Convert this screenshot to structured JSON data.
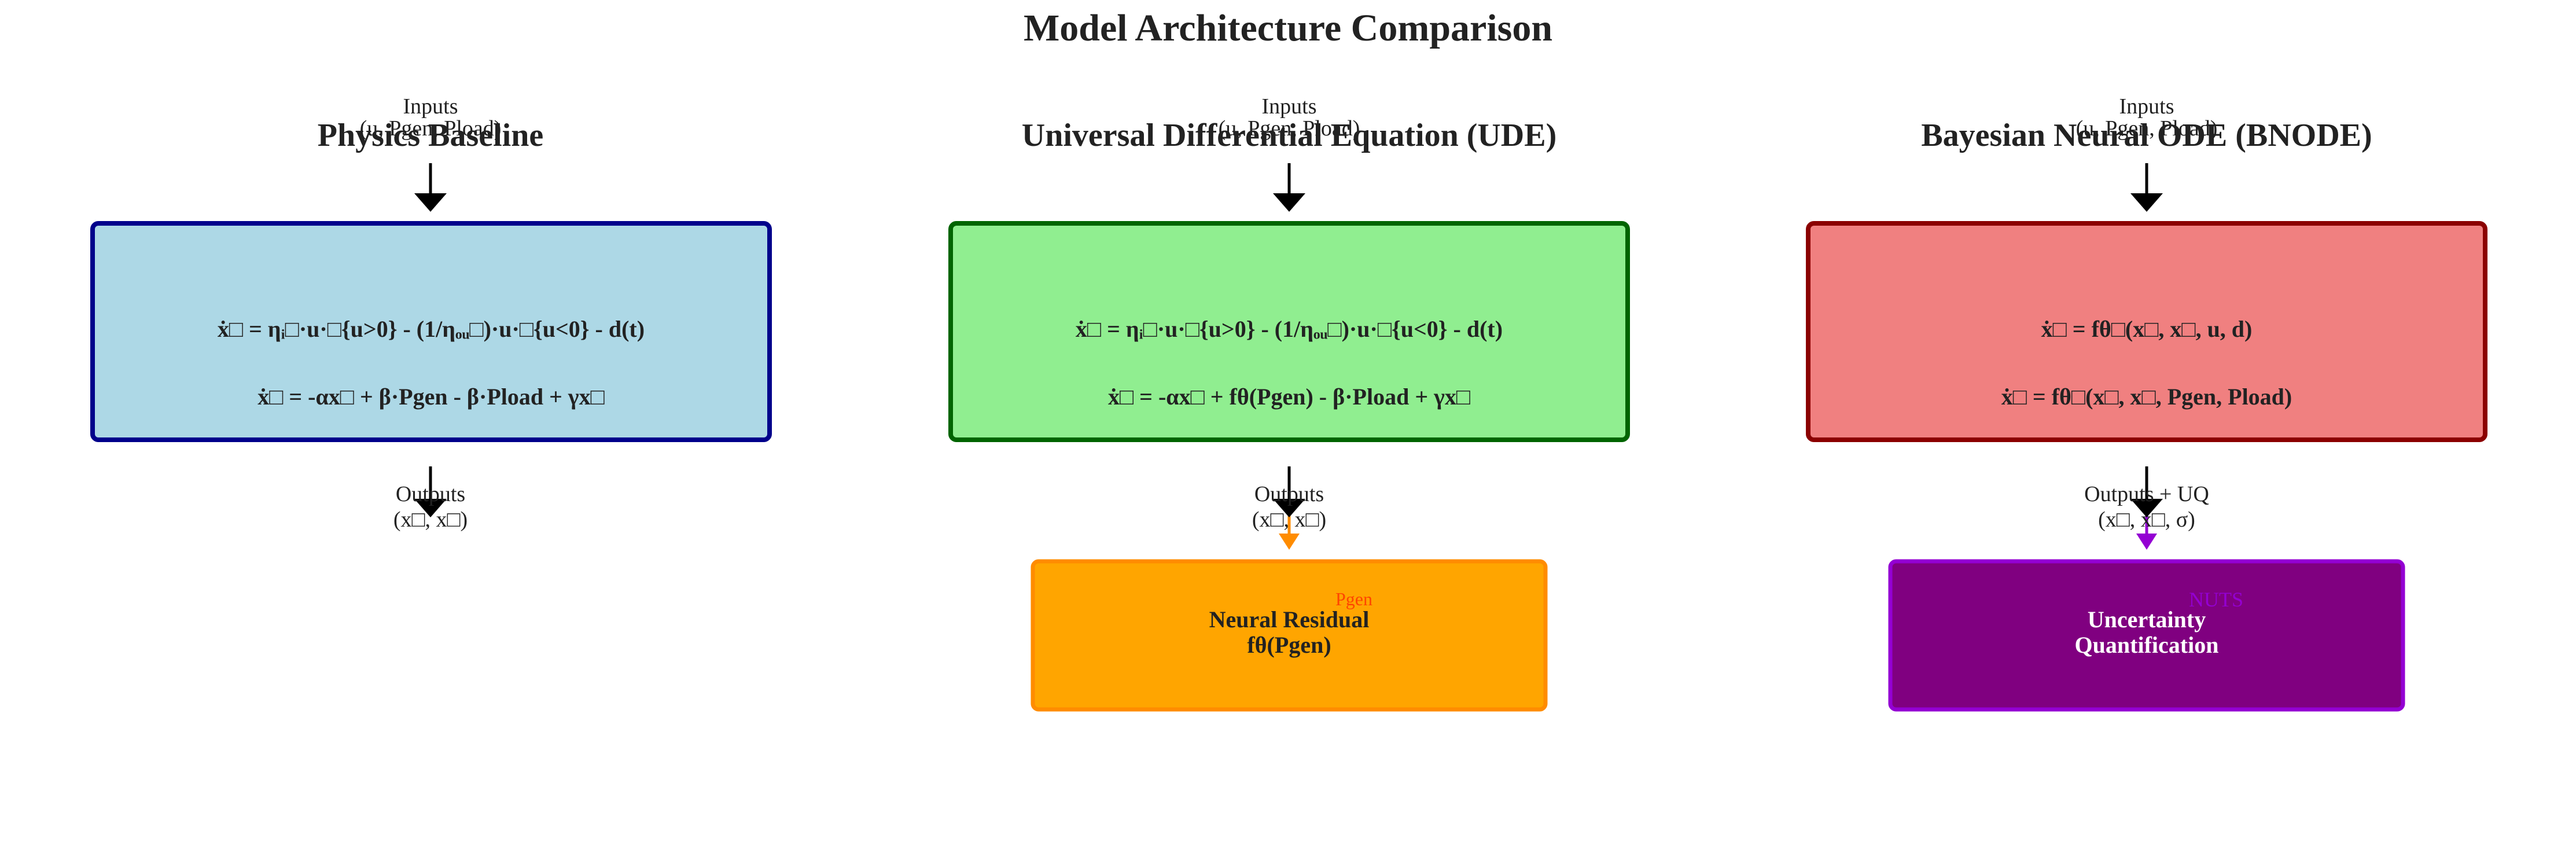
{
  "title": "Model Architecture Comparison",
  "panels": [
    {
      "heading": "Physics Baseline",
      "inputs_label": "Inputs",
      "inputs_vars": "(u, Pgen, Pload)",
      "equation_1": "ẋ□ = ηᵢ□·u·□{u>0} - (1/ηₒᵤ□)·u·□{u<0} - d(t)",
      "equation_2": "ẋ□ = -αx□ + β·Pgen - β·Pload + γx□",
      "outputs_label": "Outputs",
      "outputs_vars": "(x□, x□)",
      "box_fill": "#add8e6",
      "box_stroke": "#00008b"
    },
    {
      "heading": "Universal Differential Equation (UDE)",
      "inputs_label": "Inputs",
      "inputs_vars": "(u, Pgen, Pload)",
      "equation_1": "ẋ□ = ηᵢ□·u·□{u>0} - (1/ηₒᵤ□)·u·□{u<0} - d(t)",
      "equation_2": "ẋ□ = -αx□ + fθ(Pgen) - β·Pload + γx□",
      "outputs_label": "Outputs",
      "outputs_vars": "(x□, x□)",
      "box_fill": "#90ee90",
      "box_stroke": "#006400",
      "sub_label": "Pgen",
      "sub_label_color": "#ff4500",
      "sub_box_line1": "Neural Residual",
      "sub_box_line2": "fθ(Pgen)",
      "sub_box_fill": "#ffa500",
      "sub_box_stroke": "#ff8c00",
      "sub_text_color": "#222222",
      "connector_color": "#ff8c00"
    },
    {
      "heading": "Bayesian Neural ODE (BNODE)",
      "inputs_label": "Inputs",
      "inputs_vars": "(u, Pgen, Pload)",
      "equation_1": "ẋ□ = fθ□(x□, x□, u, d)",
      "equation_2": "ẋ□ = fθ□(x□, x□, Pgen, Pload)",
      "outputs_label": "Outputs + UQ",
      "outputs_vars": "(x□, x□, σ)",
      "box_fill": "#f08080",
      "box_stroke": "#8b0000",
      "sub_label": "NUTS",
      "sub_label_color": "#9400d3",
      "sub_box_line1": "Uncertainty",
      "sub_box_line2": "Quantification",
      "sub_box_fill": "#800080",
      "sub_box_stroke": "#9400d3",
      "sub_text_color": "#ffffff",
      "connector_color": "#9400d3"
    }
  ]
}
